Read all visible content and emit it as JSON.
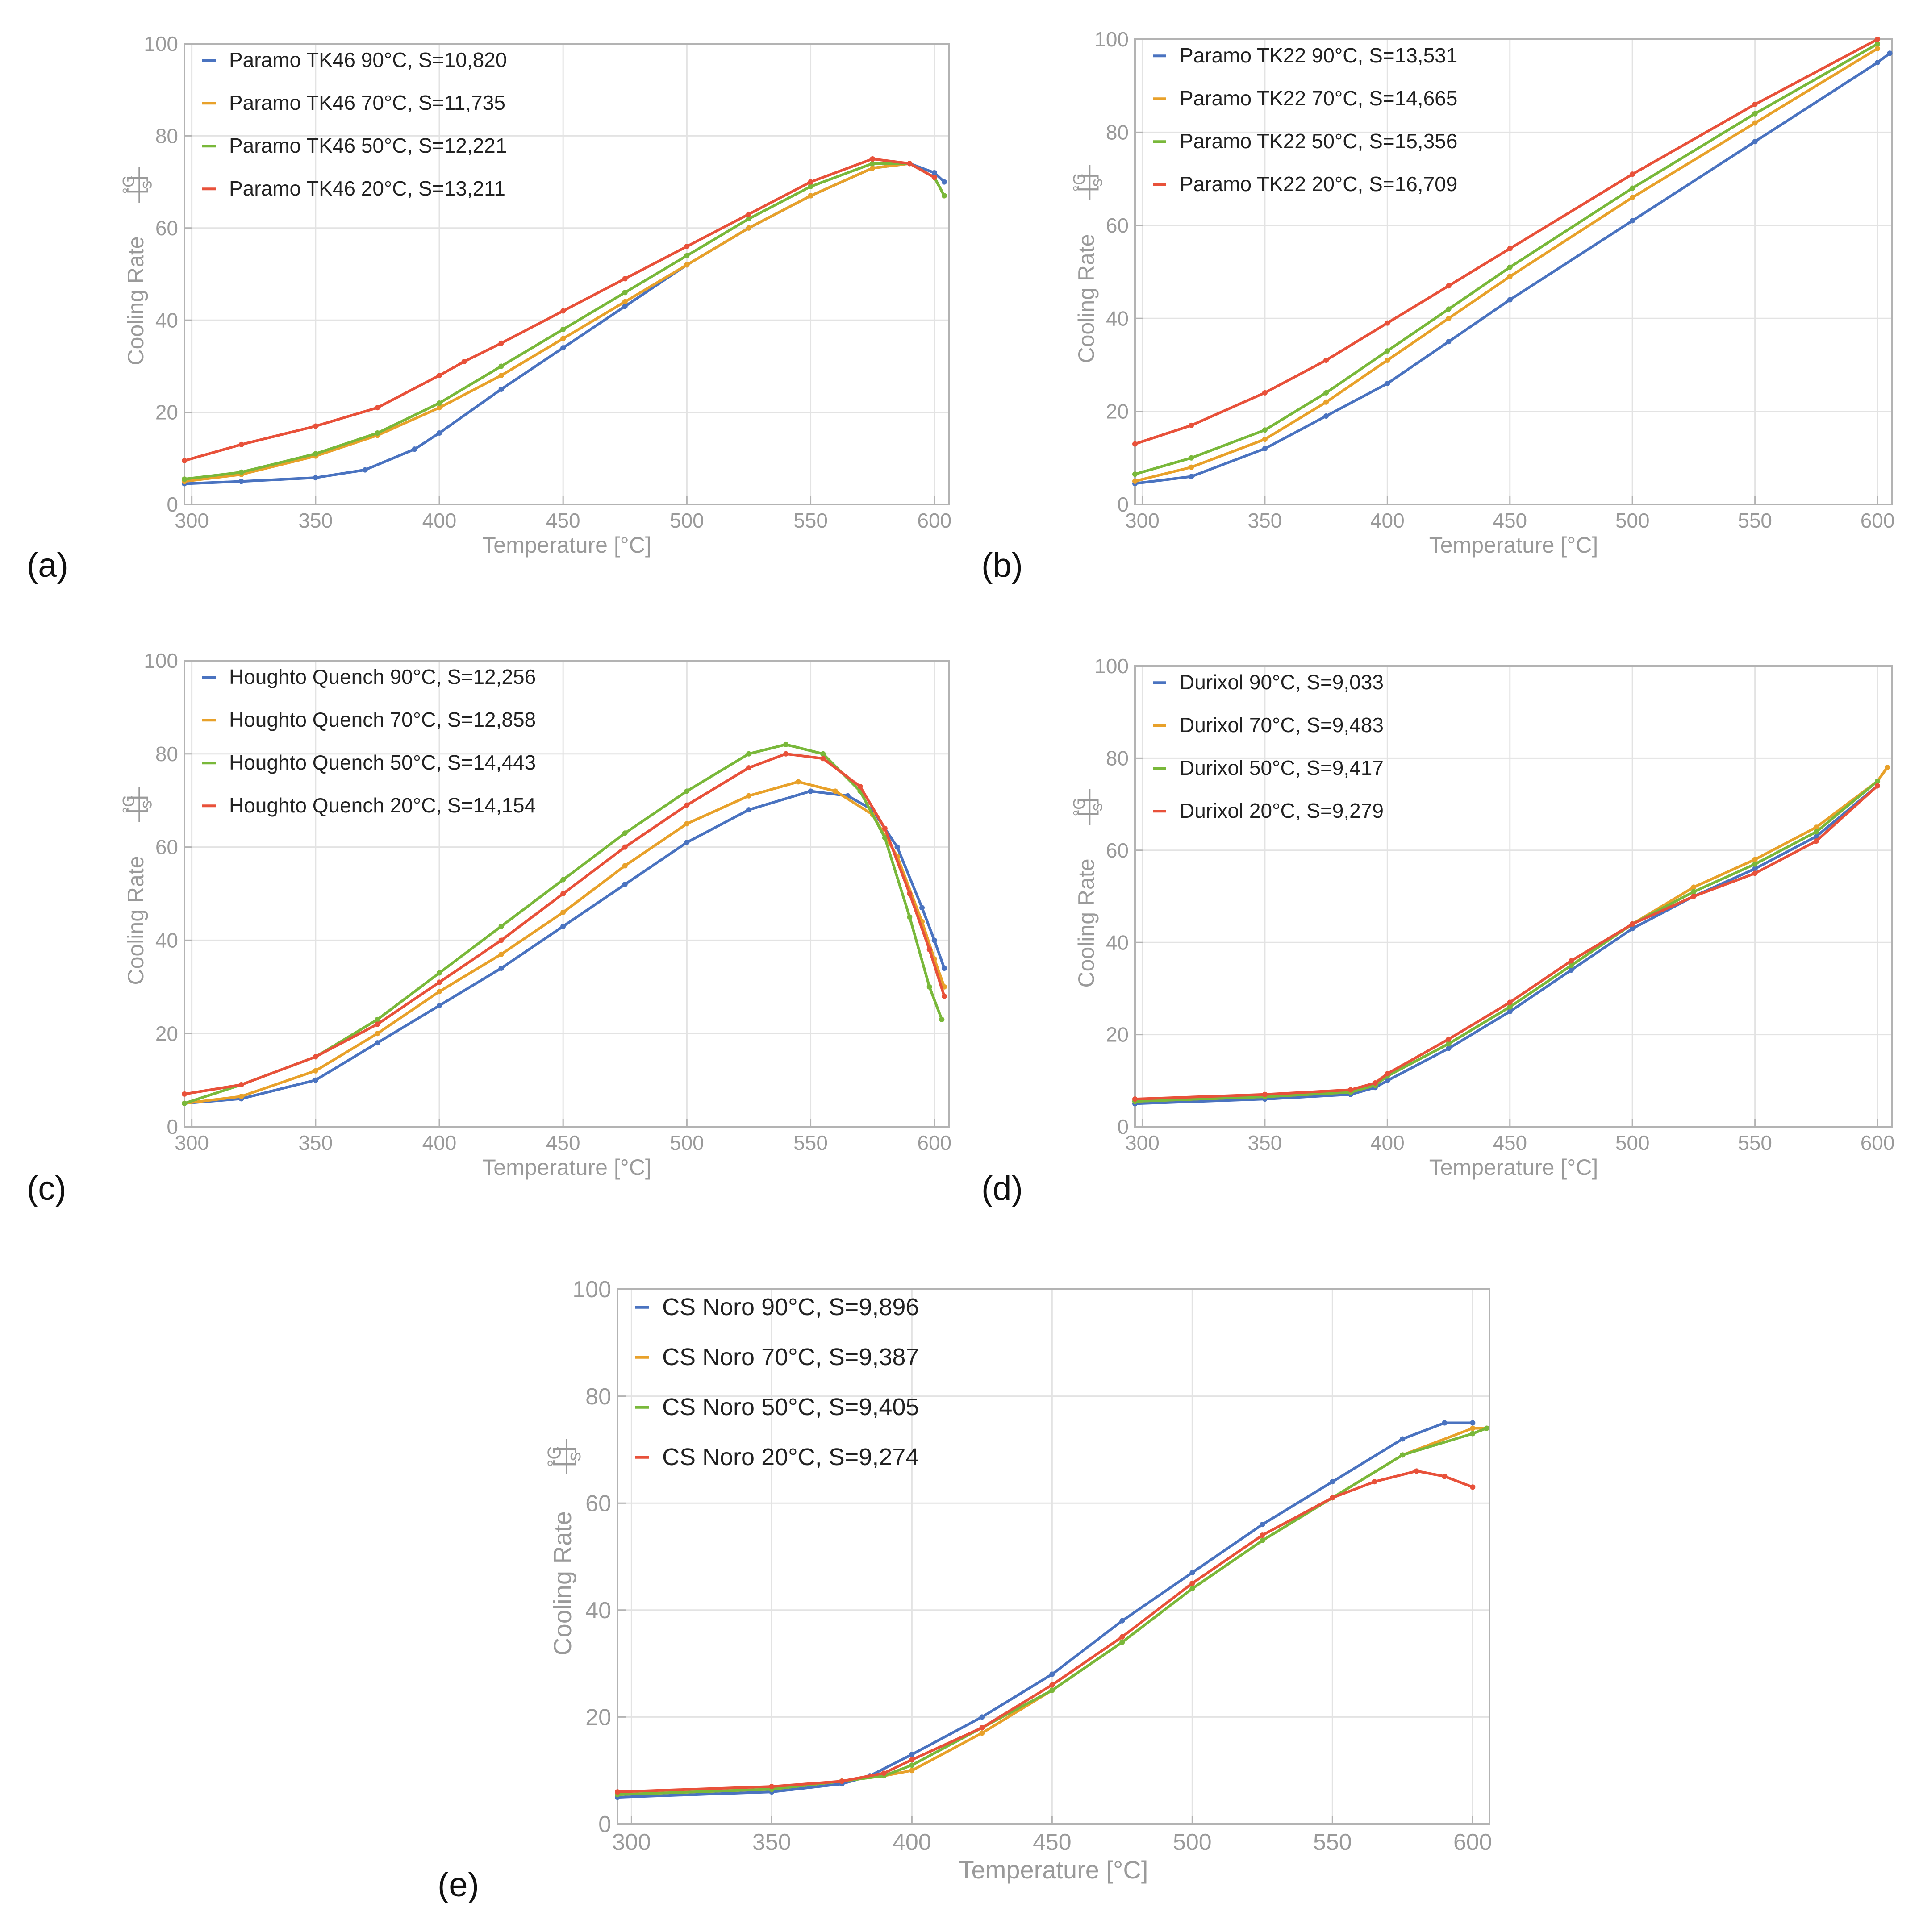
{
  "colors": {
    "blue": "#4a73c0",
    "orange": "#e8a12a",
    "green": "#79b83a",
    "red": "#e8513a",
    "grid": "#e3e3e3",
    "frame": "#b3b3b3",
    "axis_text": "#9a9a9a"
  },
  "chart_data": [
    {
      "type": "line",
      "panel_label": "(a)",
      "xlabel": "Temperature [°C]",
      "ylabel": "Cooling Rate [°C/s]",
      "xlim": [
        297,
        606
      ],
      "ylim": [
        0,
        100
      ],
      "xticks": [
        300,
        350,
        400,
        450,
        500,
        550,
        600
      ],
      "yticks": [
        0,
        20,
        40,
        60,
        80,
        100
      ],
      "grid": true,
      "legend_position": "top-left",
      "series": [
        {
          "name": "Paramo TK46 90°C, S=10,820",
          "color": "blue",
          "x": [
            297,
            320,
            350,
            370,
            390,
            400,
            425,
            450,
            475,
            500,
            525,
            550,
            575,
            590,
            600,
            604
          ],
          "y": [
            4.5,
            5,
            5.8,
            7.5,
            12,
            15.5,
            25,
            34,
            43,
            52,
            60,
            67,
            73,
            74,
            72,
            70
          ]
        },
        {
          "name": "Paramo TK46 70°C, S=11,735",
          "color": "orange",
          "x": [
            297,
            320,
            350,
            375,
            400,
            425,
            450,
            475,
            500,
            525,
            550,
            575,
            590,
            600,
            604
          ],
          "y": [
            5,
            6.5,
            10.5,
            15,
            21,
            28,
            36,
            44,
            52,
            60,
            67,
            73,
            74,
            71,
            67
          ]
        },
        {
          "name": "Paramo TK46 50°C, S=12,221",
          "color": "green",
          "x": [
            297,
            320,
            350,
            375,
            400,
            425,
            450,
            475,
            500,
            525,
            550,
            575,
            590,
            600,
            604
          ],
          "y": [
            5.5,
            7,
            11,
            15.5,
            22,
            30,
            38,
            46,
            54,
            62,
            69,
            74,
            74,
            71,
            67
          ]
        },
        {
          "name": "Paramo TK46 20°C, S=13,211",
          "color": "red",
          "x": [
            297,
            320,
            350,
            375,
            400,
            410,
            425,
            450,
            475,
            500,
            525,
            550,
            575,
            590,
            600
          ],
          "y": [
            9.5,
            13,
            17,
            21,
            28,
            31,
            35,
            42,
            49,
            56,
            63,
            70,
            75,
            74,
            71
          ]
        }
      ]
    },
    {
      "type": "line",
      "panel_label": "(b)",
      "xlabel": "Temperature [°C]",
      "ylabel": "Cooling Rate [°C/s]",
      "xlim": [
        297,
        606
      ],
      "ylim": [
        0,
        100
      ],
      "xticks": [
        300,
        350,
        400,
        450,
        500,
        550,
        600
      ],
      "yticks": [
        0,
        20,
        40,
        60,
        80,
        100
      ],
      "grid": true,
      "legend_position": "top-left",
      "series": [
        {
          "name": "Paramo TK22 90°C, S=13,531",
          "color": "blue",
          "x": [
            297,
            320,
            350,
            375,
            400,
            425,
            450,
            500,
            550,
            600,
            605
          ],
          "y": [
            4.5,
            6,
            12,
            19,
            26,
            35,
            44,
            61,
            78,
            95,
            97
          ]
        },
        {
          "name": "Paramo TK22 70°C, S=14,665",
          "color": "orange",
          "x": [
            297,
            320,
            350,
            375,
            400,
            425,
            450,
            500,
            550,
            600
          ],
          "y": [
            5,
            8,
            14,
            22,
            31,
            40,
            49,
            66,
            82,
            98
          ]
        },
        {
          "name": "Paramo TK22 50°C, S=15,356",
          "color": "green",
          "x": [
            297,
            320,
            350,
            375,
            400,
            425,
            450,
            500,
            550,
            600
          ],
          "y": [
            6.5,
            10,
            16,
            24,
            33,
            42,
            51,
            68,
            84,
            99
          ]
        },
        {
          "name": "Paramo TK22 20°C, S=16,709",
          "color": "red",
          "x": [
            297,
            320,
            350,
            375,
            400,
            425,
            450,
            500,
            550,
            600
          ],
          "y": [
            13,
            17,
            24,
            31,
            39,
            47,
            55,
            71,
            86,
            100
          ]
        }
      ]
    },
    {
      "type": "line",
      "panel_label": "(c)",
      "xlabel": "Temperature [°C]",
      "ylabel": "Cooling Rate [°C/s]",
      "xlim": [
        297,
        606
      ],
      "ylim": [
        0,
        100
      ],
      "xticks": [
        300,
        350,
        400,
        450,
        500,
        550,
        600
      ],
      "yticks": [
        0,
        20,
        40,
        60,
        80,
        100
      ],
      "grid": true,
      "legend_position": "top-left",
      "series": [
        {
          "name": "Houghto Quench 90°C, S=12,256",
          "color": "blue",
          "x": [
            297,
            320,
            350,
            375,
            400,
            425,
            450,
            475,
            500,
            525,
            550,
            565,
            575,
            585,
            595,
            600,
            604
          ],
          "y": [
            5,
            6,
            10,
            18,
            26,
            34,
            43,
            52,
            61,
            68,
            72,
            71,
            68,
            60,
            47,
            40,
            34
          ]
        },
        {
          "name": "Houghto Quench 70°C, S=12,858",
          "color": "orange",
          "x": [
            297,
            320,
            350,
            375,
            400,
            425,
            450,
            475,
            500,
            525,
            545,
            560,
            575,
            585,
            595,
            600,
            604
          ],
          "y": [
            5,
            6.5,
            12,
            20,
            29,
            37,
            46,
            56,
            65,
            71,
            74,
            72,
            67,
            58,
            44,
            36,
            30
          ]
        },
        {
          "name": "Houghto Quench 50°C, S=14,443",
          "color": "green",
          "x": [
            297,
            320,
            350,
            375,
            400,
            425,
            450,
            475,
            500,
            525,
            540,
            555,
            570,
            580,
            590,
            598,
            603
          ],
          "y": [
            5,
            9,
            15,
            23,
            33,
            43,
            53,
            63,
            72,
            80,
            82,
            80,
            72,
            62,
            45,
            30,
            23
          ]
        },
        {
          "name": "Houghto Quench 20°C, S=14,154",
          "color": "red",
          "x": [
            297,
            320,
            350,
            375,
            400,
            425,
            450,
            475,
            500,
            525,
            540,
            555,
            570,
            580,
            590,
            598,
            604
          ],
          "y": [
            7,
            9,
            15,
            22,
            31,
            40,
            50,
            60,
            69,
            77,
            80,
            79,
            73,
            64,
            50,
            38,
            28
          ]
        }
      ]
    },
    {
      "type": "line",
      "panel_label": "(d)",
      "xlabel": "Temperature [°C]",
      "ylabel": "Cooling Rate [°C/s]",
      "xlim": [
        297,
        606
      ],
      "ylim": [
        0,
        100
      ],
      "xticks": [
        300,
        350,
        400,
        450,
        500,
        550,
        600
      ],
      "yticks": [
        0,
        20,
        40,
        60,
        80,
        100
      ],
      "grid": true,
      "legend_position": "top-left",
      "series": [
        {
          "name": "Durixol 90°C, S=9,033",
          "color": "blue",
          "x": [
            297,
            350,
            385,
            395,
            400,
            425,
            450,
            475,
            500,
            525,
            550,
            575,
            600
          ],
          "y": [
            5,
            6,
            7,
            8.5,
            10,
            17,
            25,
            34,
            43,
            50,
            56,
            63,
            74
          ]
        },
        {
          "name": "Durixol 70°C, S=9,483",
          "color": "orange",
          "x": [
            297,
            350,
            385,
            395,
            400,
            425,
            450,
            475,
            500,
            525,
            550,
            575,
            600,
            604
          ],
          "y": [
            5.5,
            6.5,
            7.5,
            9,
            11,
            18,
            26,
            35,
            44,
            52,
            58,
            65,
            75,
            78
          ]
        },
        {
          "name": "Durixol 50°C, S=9,417",
          "color": "green",
          "x": [
            297,
            350,
            385,
            395,
            400,
            425,
            450,
            475,
            500,
            525,
            550,
            575,
            600
          ],
          "y": [
            5.5,
            6.5,
            7.5,
            9,
            11,
            18,
            26,
            35,
            44,
            51,
            57,
            64,
            75
          ]
        },
        {
          "name": "Durixol  20°C, S=9,279",
          "color": "red",
          "x": [
            297,
            350,
            385,
            395,
            400,
            425,
            450,
            475,
            500,
            525,
            550,
            575,
            600
          ],
          "y": [
            6,
            7,
            8,
            9.5,
            11.5,
            19,
            27,
            36,
            44,
            50,
            55,
            62,
            74
          ]
        }
      ]
    },
    {
      "type": "line",
      "panel_label": "(e)",
      "xlabel": "Temperature [°C]",
      "ylabel": "Cooling Rate [°C/s]",
      "xlim": [
        295,
        606
      ],
      "ylim": [
        0,
        100
      ],
      "xticks": [
        300,
        350,
        400,
        450,
        500,
        550,
        600
      ],
      "yticks": [
        0,
        20,
        40,
        60,
        80,
        100
      ],
      "grid": true,
      "legend_position": "top-left",
      "series": [
        {
          "name": "CS Noro 90°C, S=9,896",
          "color": "blue",
          "x": [
            295,
            350,
            375,
            385,
            400,
            425,
            450,
            475,
            500,
            525,
            550,
            575,
            590,
            600
          ],
          "y": [
            5,
            6,
            7.5,
            9,
            13,
            20,
            28,
            38,
            47,
            56,
            64,
            72,
            75,
            75
          ]
        },
        {
          "name": "CS Noro 70°C, S=9,387",
          "color": "orange",
          "x": [
            295,
            350,
            375,
            390,
            400,
            425,
            450,
            475,
            500,
            525,
            550,
            575,
            600,
            605
          ],
          "y": [
            5.5,
            6.5,
            8,
            9,
            10,
            17,
            25,
            34,
            44,
            53,
            61,
            69,
            74,
            74
          ]
        },
        {
          "name": "CS Noro 50°C, S=9,405",
          "color": "green",
          "x": [
            295,
            350,
            375,
            390,
            400,
            425,
            450,
            475,
            500,
            525,
            550,
            575,
            600,
            605
          ],
          "y": [
            5.5,
            6.5,
            8,
            9,
            11,
            18,
            25,
            34,
            44,
            53,
            61,
            69,
            73,
            74
          ]
        },
        {
          "name": "CS Noro 20°C, S=9,274",
          "color": "red",
          "x": [
            295,
            350,
            375,
            390,
            400,
            425,
            450,
            475,
            500,
            525,
            550,
            565,
            580,
            590,
            600
          ],
          "y": [
            6,
            7,
            8,
            9.5,
            12,
            18,
            26,
            35,
            45,
            54,
            61,
            64,
            66,
            65,
            63
          ]
        }
      ]
    }
  ]
}
